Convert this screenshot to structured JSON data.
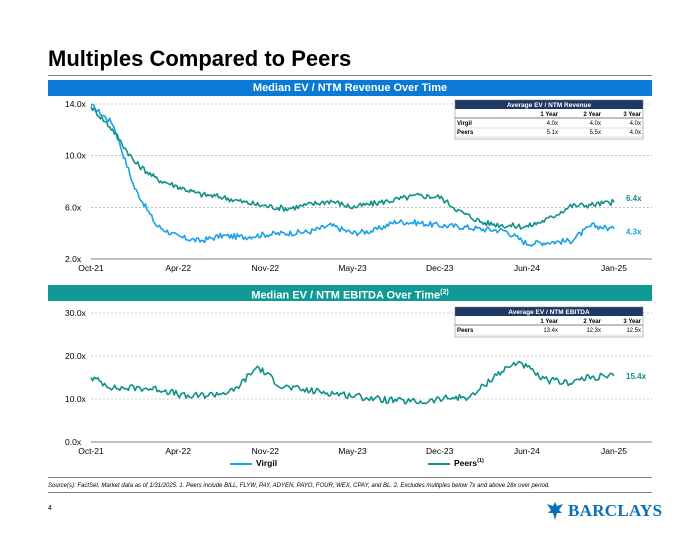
{
  "page": {
    "title": "Multiples Compared to Peers",
    "page_number": "4",
    "source": "Source(s): FactSet. Market data as of 1/31/2025. 1. Peers include BILL, FLYW, PAY, ADYEN, PAYO, FOUR, WEX, CPAY, and BL. 2. Excludes multiples below 7x and above 28x over period.",
    "logo_text": "BARCLAYS",
    "colors": {
      "virgil": "#1ba1e6",
      "peers": "#0f9088",
      "blue_band": "#0a7ad6",
      "teal_band": "#0f9a95",
      "table_header": "#1f3864"
    }
  },
  "legend": {
    "virgil_label": "Virgil",
    "peers_label": "Peers",
    "peers_footnote": "(1)"
  },
  "chart_data": [
    {
      "type": "line",
      "title": "Median EV / NTM Revenue Over Time",
      "x_ticks": [
        "Oct-21",
        "Apr-22",
        "Nov-22",
        "May-23",
        "Dec-23",
        "Jun-24",
        "Jan-25"
      ],
      "y_ticks": [
        "2.0x",
        "6.0x",
        "10.0x",
        "14.0x"
      ],
      "ylim": [
        2,
        14
      ],
      "x": [
        "Oct-21",
        "Dec-21",
        "Jan-22",
        "Feb-22",
        "Apr-22",
        "May-22",
        "Jul-22",
        "Aug-22",
        "Oct-22",
        "Nov-22",
        "Jan-23",
        "Mar-23",
        "May-23",
        "Jul-23",
        "Sep-23",
        "Oct-23",
        "Dec-23",
        "Feb-24",
        "Apr-24",
        "May-24",
        "Jun-24",
        "Aug-24",
        "Oct-24",
        "Dec-24",
        "Jan-25"
      ],
      "series": [
        {
          "name": "Virgil",
          "end_label": "4.3x",
          "values": [
            13.9,
            12.5,
            7.5,
            4.6,
            3.7,
            3.4,
            3.8,
            3.7,
            3.9,
            4.0,
            4.1,
            4.6,
            4.0,
            4.2,
            4.9,
            4.8,
            4.6,
            4.5,
            4.3,
            4.2,
            3.2,
            3.3,
            3.4,
            4.6,
            4.3
          ]
        },
        {
          "name": "Peers",
          "end_label": "6.4x",
          "values": [
            13.8,
            12.0,
            9.5,
            8.2,
            7.6,
            7.0,
            6.8,
            6.4,
            6.1,
            5.9,
            6.2,
            6.5,
            6.0,
            6.3,
            6.6,
            6.9,
            6.8,
            5.6,
            4.8,
            4.6,
            4.5,
            5.1,
            6.1,
            6.2,
            6.4
          ]
        }
      ],
      "table": {
        "title": "Average EV / NTM Revenue",
        "columns": [
          "",
          "1 Year",
          "2 Year",
          "3 Year"
        ],
        "rows": [
          [
            "Virgil",
            "4.0x",
            "4.0x",
            "4.0x"
          ],
          [
            "Peers",
            "5.1x",
            "5.5x",
            "4.0x"
          ]
        ]
      }
    },
    {
      "type": "line",
      "title": "Median EV / NTM EBITDA Over Time",
      "title_footnote": "(2)",
      "x_ticks": [
        "Oct-21",
        "Apr-22",
        "Nov-22",
        "May-23",
        "Dec-23",
        "Jun-24",
        "Jan-25"
      ],
      "y_ticks": [
        "0.0x",
        "10.0x",
        "20.0x",
        "30.0x"
      ],
      "ylim": [
        0,
        30
      ],
      "x": [
        "Oct-21",
        "Dec-21",
        "Feb-22",
        "Apr-22",
        "Jun-22",
        "Aug-22",
        "Oct-22",
        "Nov-22",
        "Dec-22",
        "Feb-23",
        "Apr-23",
        "Jun-23",
        "Aug-23",
        "Oct-23",
        "Dec-23",
        "Feb-24",
        "Apr-24",
        "May-24",
        "Jun-24",
        "Jul-24",
        "Sep-24",
        "Nov-24",
        "Jan-25"
      ],
      "series": [
        {
          "name": "Peers",
          "end_label": "15.4x",
          "values": [
            15.0,
            12.5,
            12.6,
            12.2,
            10.5,
            11.0,
            11.8,
            17.5,
            13.0,
            12.0,
            11.5,
            10.8,
            10.0,
            9.5,
            9.3,
            10.2,
            10.5,
            15.5,
            18.8,
            14.5,
            13.8,
            15.0,
            15.4
          ]
        }
      ],
      "table": {
        "title": "Average EV / NTM EBITDA",
        "columns": [
          "",
          "1 Year",
          "2 Year",
          "3 Year"
        ],
        "rows": [
          [
            "Peers",
            "13.4x",
            "12.3x",
            "12.5x"
          ]
        ]
      }
    }
  ]
}
